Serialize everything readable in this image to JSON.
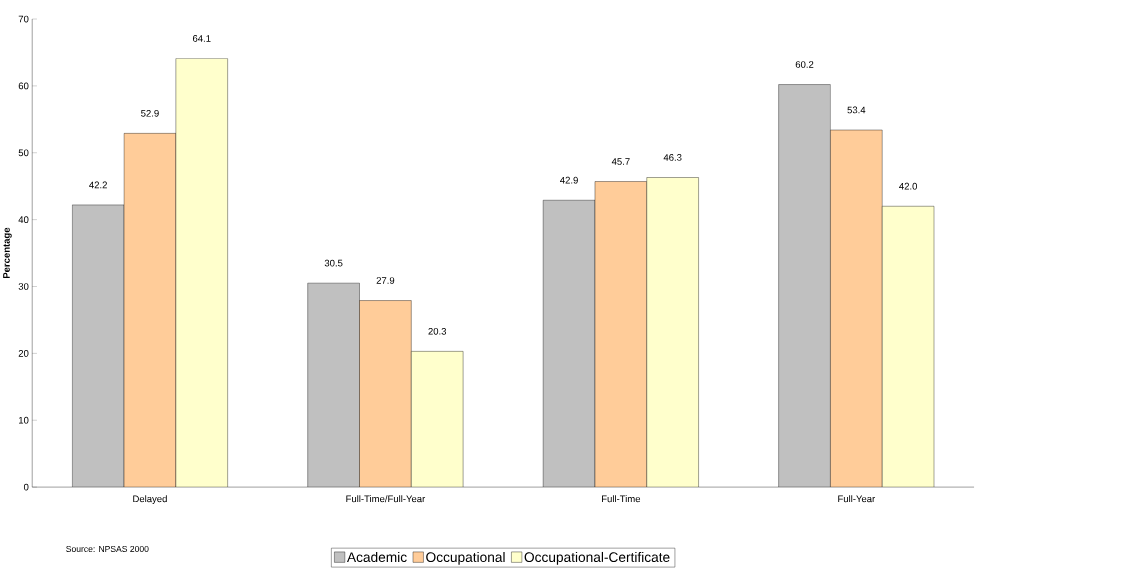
{
  "chart_data": {
    "type": "bar",
    "ylabel": "Percentage",
    "categories": [
      "Delayed",
      "Full-Time/Full-Year",
      "Full-Time",
      "Full-Year"
    ],
    "series": [
      {
        "name": "Academic",
        "color": "#c0c0c0",
        "values": [
          42.2,
          30.5,
          42.9,
          60.2
        ],
        "value_labels": [
          "42.2",
          "30.5",
          "42.9",
          "60.2"
        ]
      },
      {
        "name": "Occupational",
        "color": "#ffcc99",
        "values": [
          52.9,
          27.9,
          45.7,
          53.4
        ],
        "value_labels": [
          "52.9",
          "27.9",
          "45.7",
          "53.4"
        ]
      },
      {
        "name": "Occupational-Certificate",
        "color": "#ffffcc",
        "values": [
          64.1,
          20.3,
          46.3,
          42.0
        ],
        "value_labels": [
          "64.1",
          "20.3",
          "46.3",
          "42.0"
        ]
      }
    ],
    "ylim": [
      0,
      70
    ],
    "yticks": [
      0,
      10,
      20,
      30,
      40,
      50,
      60,
      70
    ],
    "legend": "bottom",
    "grid": false,
    "annotations": [
      "Source:  NPSAS 2000"
    ]
  }
}
